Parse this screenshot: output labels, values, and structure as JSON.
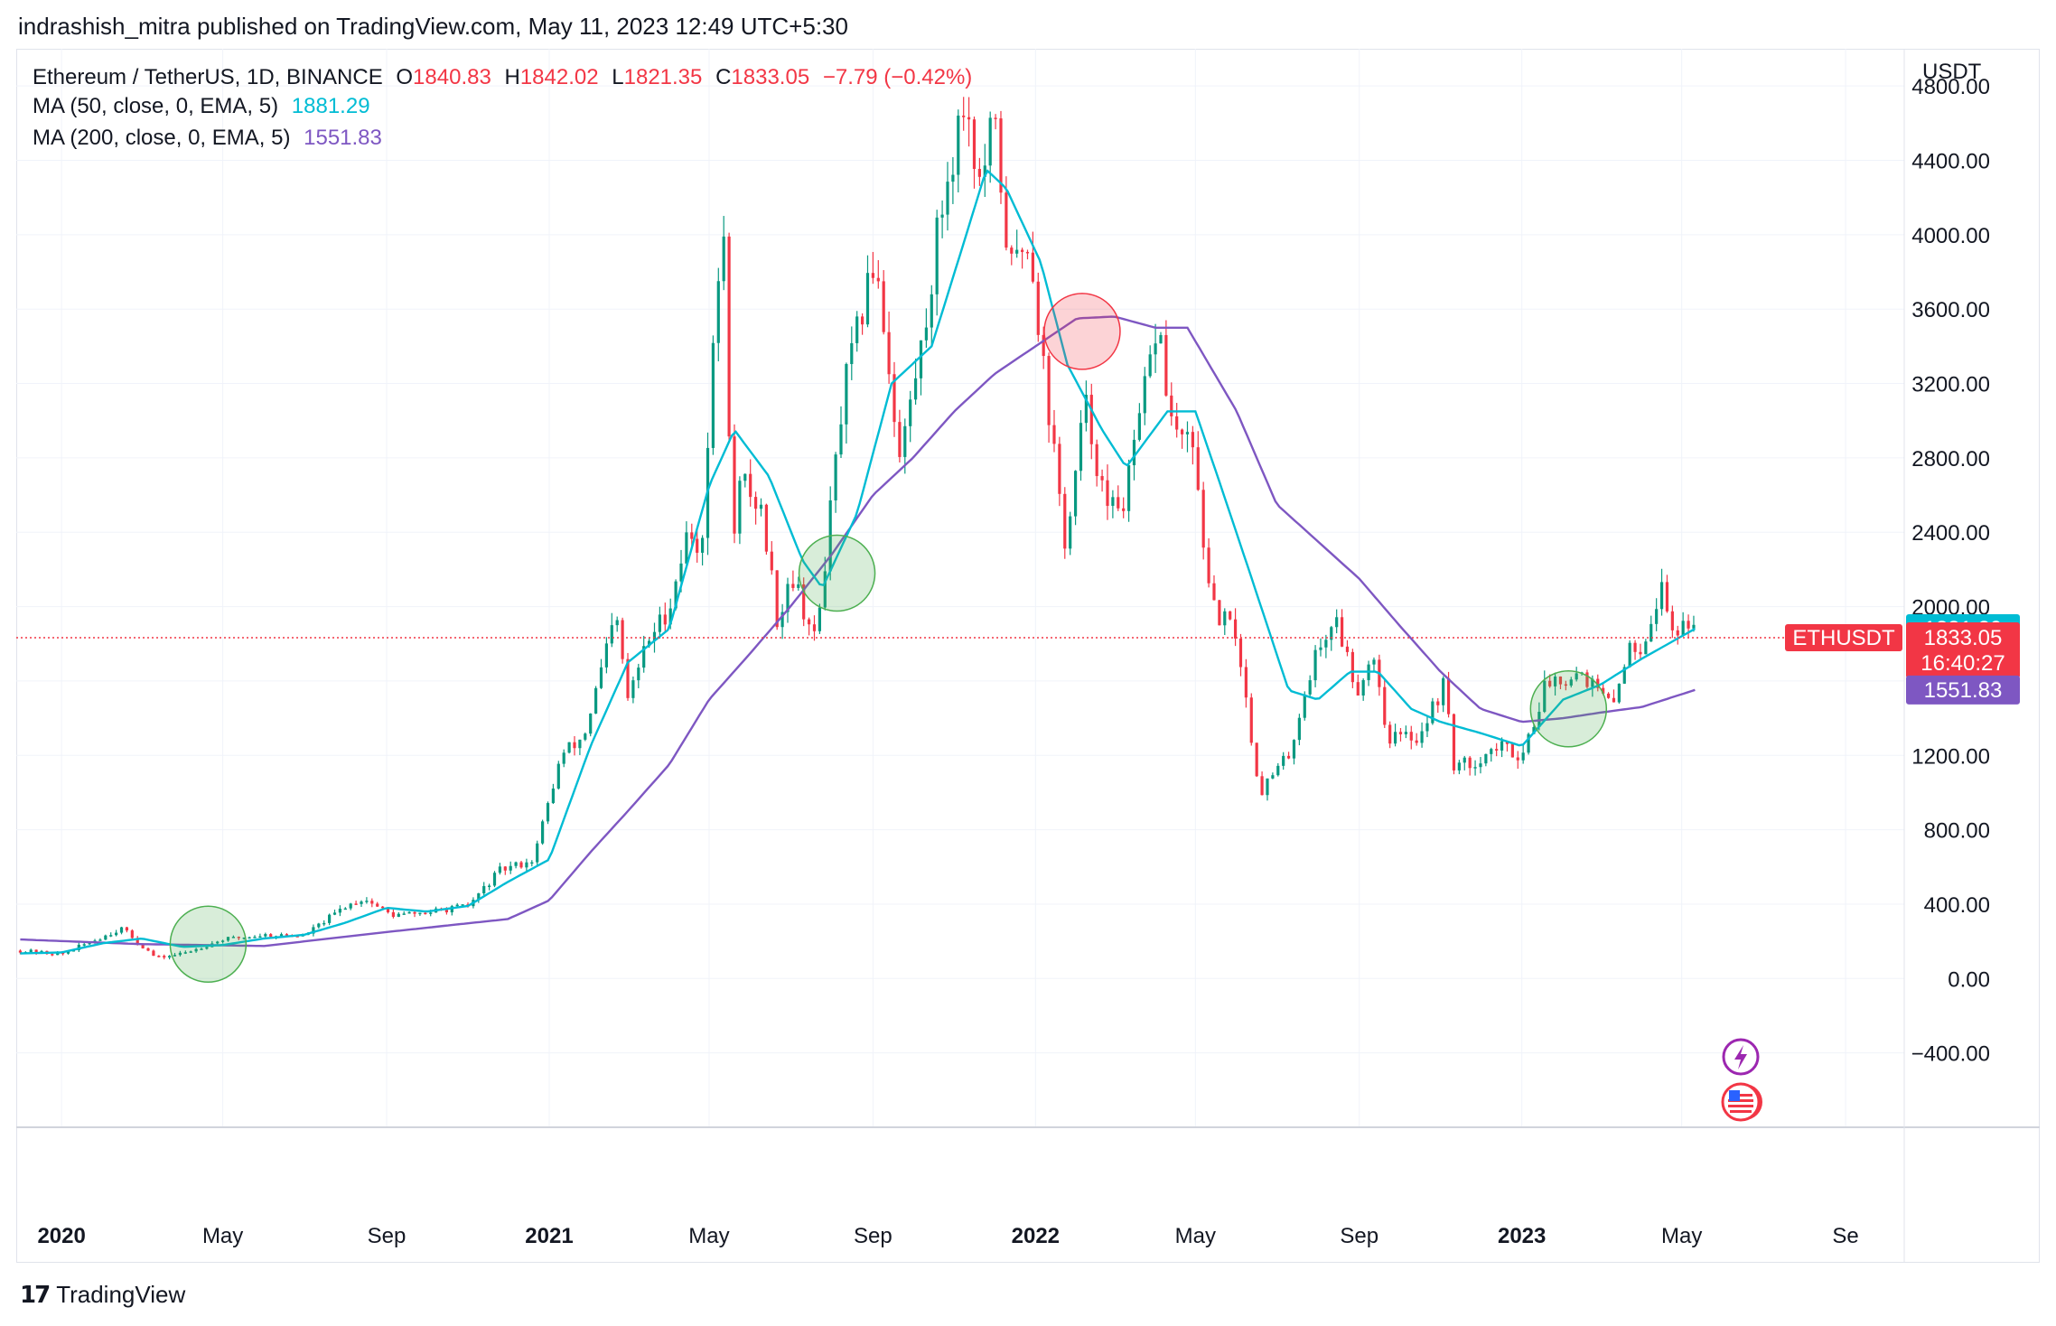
{
  "header": {
    "publisher_line": "indrashish_mitra published on TradingView.com, May 11, 2023 12:49 UTC+5:30"
  },
  "legend": {
    "symbol": "Ethereum / TetherUS, 1D, BINANCE",
    "open_label": "O",
    "open": "1840.83",
    "high_label": "H",
    "high": "1842.02",
    "low_label": "L",
    "low": "1821.35",
    "close_label": "C",
    "close": "1833.05",
    "change": "−7.79 (−0.42%)",
    "ma50_label": "MA (50, close, 0, EMA, 5)",
    "ma50_value": "1881.29",
    "ma200_label": "MA (200, close, 0, EMA, 5)",
    "ma200_value": "1551.83"
  },
  "price_axis": {
    "unit": "USDT"
  },
  "footer": {
    "brand": "TradingView",
    "logo_glyph": "17"
  },
  "colors": {
    "up": "#089981",
    "down": "#f23645",
    "ma50": "#00bcd4",
    "ma200": "#7e57c2",
    "grid": "#f0f3fa",
    "green_circle": "#4caf50",
    "red_circle": "#f23645"
  },
  "chart_data": {
    "type": "candlestick",
    "symbol": "ETHUSDT",
    "timeframe": "1D",
    "ylim": [
      -800,
      5000
    ],
    "xlim": [
      "2019-11-28",
      "2023-10-15"
    ],
    "y_ticks": [
      "−400.00",
      "0.00",
      "400.00",
      "800.00",
      "1200.00",
      "1600.00",
      "2000.00",
      "2400.00",
      "2800.00",
      "3200.00",
      "3600.00",
      "4000.00",
      "4400.00",
      "4800.00"
    ],
    "y_tick_values": [
      -400,
      0,
      400,
      800,
      1200,
      1600,
      2000,
      2400,
      2800,
      3200,
      3600,
      4000,
      4400,
      4800
    ],
    "x_ticks": [
      {
        "label": "2020",
        "date": "2020-01-01",
        "bold": true
      },
      {
        "label": "May",
        "date": "2020-05-01",
        "bold": false
      },
      {
        "label": "Sep",
        "date": "2020-09-01",
        "bold": false
      },
      {
        "label": "2021",
        "date": "2021-01-01",
        "bold": true
      },
      {
        "label": "May",
        "date": "2021-05-01",
        "bold": false
      },
      {
        "label": "Sep",
        "date": "2021-09-01",
        "bold": false
      },
      {
        "label": "2022",
        "date": "2022-01-01",
        "bold": true
      },
      {
        "label": "May",
        "date": "2022-05-01",
        "bold": false
      },
      {
        "label": "Sep",
        "date": "2022-09-01",
        "bold": false
      },
      {
        "label": "2023",
        "date": "2023-01-01",
        "bold": true
      },
      {
        "label": "May",
        "date": "2023-05-01",
        "bold": false
      },
      {
        "label": "Se",
        "date": "2023-09-01",
        "bold": false
      }
    ],
    "price_keypoints": [
      [
        "2019-12-01",
        150
      ],
      [
        "2020-01-01",
        130
      ],
      [
        "2020-02-15",
        270
      ],
      [
        "2020-03-12",
        110
      ],
      [
        "2020-04-01",
        135
      ],
      [
        "2020-05-01",
        210
      ],
      [
        "2020-06-01",
        235
      ],
      [
        "2020-07-01",
        230
      ],
      [
        "2020-08-01",
        390
      ],
      [
        "2020-08-15",
        430
      ],
      [
        "2020-09-05",
        340
      ],
      [
        "2020-10-01",
        355
      ],
      [
        "2020-11-01",
        390
      ],
      [
        "2020-11-25",
        580
      ],
      [
        "2020-12-20",
        640
      ],
      [
        "2021-01-10",
        1200
      ],
      [
        "2021-01-27",
        1300
      ],
      [
        "2021-02-20",
        1950
      ],
      [
        "2021-03-01",
        1500
      ],
      [
        "2021-03-15",
        1800
      ],
      [
        "2021-04-01",
        2000
      ],
      [
        "2021-04-15",
        2400
      ],
      [
        "2021-04-25",
        2300
      ],
      [
        "2021-05-11",
        4150
      ],
      [
        "2021-05-19",
        2300
      ],
      [
        "2021-05-25",
        2700
      ],
      [
        "2021-06-10",
        2500
      ],
      [
        "2021-06-22",
        1900
      ],
      [
        "2021-07-01",
        2200
      ],
      [
        "2021-07-20",
        1800
      ],
      [
        "2021-08-10",
        3150
      ],
      [
        "2021-09-03",
        3900
      ],
      [
        "2021-09-21",
        2800
      ],
      [
        "2021-10-10",
        3500
      ],
      [
        "2021-10-21",
        4100
      ],
      [
        "2021-11-09",
        4750
      ],
      [
        "2021-11-20",
        4250
      ],
      [
        "2021-12-01",
        4600
      ],
      [
        "2021-12-13",
        3800
      ],
      [
        "2021-12-27",
        4000
      ],
      [
        "2022-01-10",
        3100
      ],
      [
        "2022-01-24",
        2300
      ],
      [
        "2022-02-07",
        3100
      ],
      [
        "2022-02-24",
        2500
      ],
      [
        "2022-03-10",
        2600
      ],
      [
        "2022-04-03",
        3550
      ],
      [
        "2022-04-12",
        3000
      ],
      [
        "2022-05-01",
        2800
      ],
      [
        "2022-05-12",
        2000
      ],
      [
        "2022-06-01",
        1850
      ],
      [
        "2022-06-18",
        1000
      ],
      [
        "2022-07-10",
        1200
      ],
      [
        "2022-07-28",
        1700
      ],
      [
        "2022-08-14",
        1950
      ],
      [
        "2022-08-30",
        1550
      ],
      [
        "2022-09-12",
        1750
      ],
      [
        "2022-09-22",
        1300
      ],
      [
        "2022-10-15",
        1300
      ],
      [
        "2022-11-05",
        1600
      ],
      [
        "2022-11-10",
        1150
      ],
      [
        "2022-11-22",
        1150
      ],
      [
        "2022-12-15",
        1250
      ],
      [
        "2023-01-01",
        1200
      ],
      [
        "2023-01-20",
        1600
      ],
      [
        "2023-02-15",
        1650
      ],
      [
        "2023-03-10",
        1450
      ],
      [
        "2023-03-20",
        1750
      ],
      [
        "2023-04-01",
        1800
      ],
      [
        "2023-04-16",
        2100
      ],
      [
        "2023-04-25",
        1850
      ],
      [
        "2023-05-05",
        1950
      ],
      [
        "2023-05-11",
        1833
      ]
    ],
    "ma50": [
      [
        "2019-12-01",
        135
      ],
      [
        "2020-01-01",
        140
      ],
      [
        "2020-02-01",
        190
      ],
      [
        "2020-03-01",
        215
      ],
      [
        "2020-04-01",
        170
      ],
      [
        "2020-05-01",
        180
      ],
      [
        "2020-06-01",
        215
      ],
      [
        "2020-07-01",
        235
      ],
      [
        "2020-08-01",
        300
      ],
      [
        "2020-09-01",
        380
      ],
      [
        "2020-10-01",
        360
      ],
      [
        "2020-11-01",
        390
      ],
      [
        "2020-12-01",
        520
      ],
      [
        "2021-01-01",
        640
      ],
      [
        "2021-02-01",
        1250
      ],
      [
        "2021-03-01",
        1700
      ],
      [
        "2021-04-01",
        1880
      ],
      [
        "2021-05-01",
        2650
      ],
      [
        "2021-05-20",
        2950
      ],
      [
        "2021-06-15",
        2700
      ],
      [
        "2021-07-10",
        2250
      ],
      [
        "2021-07-25",
        2100
      ],
      [
        "2021-08-20",
        2500
      ],
      [
        "2021-09-15",
        3200
      ],
      [
        "2021-10-15",
        3400
      ],
      [
        "2021-11-10",
        4000
      ],
      [
        "2021-11-25",
        4350
      ],
      [
        "2021-12-10",
        4250
      ],
      [
        "2022-01-05",
        3850
      ],
      [
        "2022-01-25",
        3300
      ],
      [
        "2022-02-20",
        2950
      ],
      [
        "2022-03-10",
        2750
      ],
      [
        "2022-04-10",
        3050
      ],
      [
        "2022-05-01",
        3050
      ],
      [
        "2022-05-20",
        2650
      ],
      [
        "2022-06-10",
        2200
      ],
      [
        "2022-07-10",
        1550
      ],
      [
        "2022-08-01",
        1500
      ],
      [
        "2022-08-25",
        1650
      ],
      [
        "2022-09-15",
        1650
      ],
      [
        "2022-10-10",
        1450
      ],
      [
        "2022-11-01",
        1380
      ],
      [
        "2022-12-01",
        1320
      ],
      [
        "2023-01-01",
        1250
      ],
      [
        "2023-02-01",
        1500
      ],
      [
        "2023-03-01",
        1580
      ],
      [
        "2023-04-01",
        1720
      ],
      [
        "2023-05-11",
        1881
      ]
    ],
    "ma200": [
      [
        "2019-12-01",
        210
      ],
      [
        "2020-03-01",
        185
      ],
      [
        "2020-06-01",
        175
      ],
      [
        "2020-09-01",
        250
      ],
      [
        "2020-12-01",
        320
      ],
      [
        "2021-01-01",
        420
      ],
      [
        "2021-02-01",
        680
      ],
      [
        "2021-03-01",
        900
      ],
      [
        "2021-04-01",
        1150
      ],
      [
        "2021-05-01",
        1500
      ],
      [
        "2021-06-01",
        1750
      ],
      [
        "2021-07-01",
        2000
      ],
      [
        "2021-08-01",
        2280
      ],
      [
        "2021-09-01",
        2600
      ],
      [
        "2021-10-01",
        2800
      ],
      [
        "2021-11-01",
        3050
      ],
      [
        "2021-12-01",
        3250
      ],
      [
        "2022-01-01",
        3400
      ],
      [
        "2022-02-01",
        3550
      ],
      [
        "2022-03-01",
        3560
      ],
      [
        "2022-04-01",
        3500
      ],
      [
        "2022-04-25",
        3500
      ],
      [
        "2022-06-01",
        3050
      ],
      [
        "2022-07-01",
        2550
      ],
      [
        "2022-08-01",
        2350
      ],
      [
        "2022-09-01",
        2150
      ],
      [
        "2022-10-01",
        1900
      ],
      [
        "2022-11-01",
        1650
      ],
      [
        "2022-12-01",
        1450
      ],
      [
        "2023-01-01",
        1380
      ],
      [
        "2023-02-01",
        1400
      ],
      [
        "2023-03-01",
        1430
      ],
      [
        "2023-04-01",
        1460
      ],
      [
        "2023-05-11",
        1552
      ]
    ],
    "current_price": 1833.05,
    "annotations": [
      {
        "type": "circle",
        "kind": "green",
        "date": "2020-04-20",
        "price": 185
      },
      {
        "type": "circle",
        "kind": "green",
        "date": "2021-08-05",
        "price": 2180
      },
      {
        "type": "circle",
        "kind": "red",
        "date": "2022-02-05",
        "price": 3480
      },
      {
        "type": "circle",
        "kind": "green",
        "date": "2023-02-05",
        "price": 1450
      }
    ],
    "price_labels": {
      "ma50_tag": "1881.29",
      "symbol_tag": "ETHUSDT",
      "last_price": "1833.05",
      "countdown": "16:40:27",
      "ma200_tag": "1551.83"
    }
  }
}
